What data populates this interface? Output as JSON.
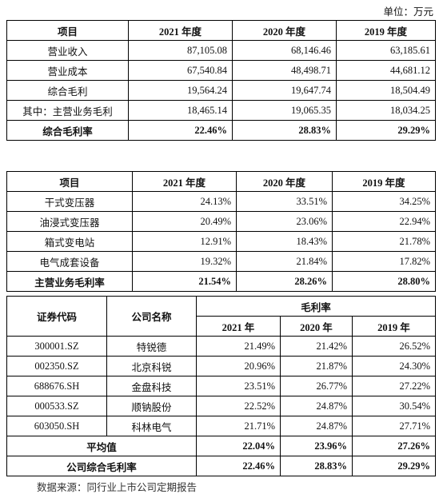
{
  "unit": "单位：万元",
  "table1": {
    "header": [
      "项目",
      "2021 年度",
      "2020 年度",
      "2019 年度"
    ],
    "rows": [
      [
        "营业收入",
        "87,105.08",
        "68,146.46",
        "63,185.61"
      ],
      [
        "营业成本",
        "67,540.84",
        "48,498.71",
        "44,681.12"
      ],
      [
        "综合毛利",
        "19,564.24",
        "19,647.74",
        "18,504.49"
      ],
      [
        "其中：主营业务毛利",
        "18,465.14",
        "19,065.35",
        "18,034.25"
      ],
      [
        "综合毛利率",
        "22.46%",
        "28.83%",
        "29.29%"
      ]
    ]
  },
  "table2": {
    "header": [
      "项目",
      "2021 年度",
      "2020 年度",
      "2019 年度"
    ],
    "rows": [
      [
        "干式变压器",
        "24.13%",
        "33.51%",
        "34.25%"
      ],
      [
        "油浸式变压器",
        "20.49%",
        "23.06%",
        "22.94%"
      ],
      [
        "箱式变电站",
        "12.91%",
        "18.43%",
        "21.78%"
      ],
      [
        "电气成套设备",
        "19.32%",
        "21.84%",
        "17.82%"
      ],
      [
        "主营业务毛利率",
        "21.54%",
        "28.26%",
        "28.80%"
      ]
    ]
  },
  "table3": {
    "header": {
      "code": "证券代码",
      "name": "公司名称",
      "group": "毛利率",
      "years": [
        "2021 年",
        "2020 年",
        "2019 年"
      ]
    },
    "rows": [
      [
        "300001.SZ",
        "特锐德",
        "21.49%",
        "21.42%",
        "26.52%"
      ],
      [
        "002350.SZ",
        "北京科锐",
        "20.96%",
        "21.87%",
        "24.30%"
      ],
      [
        "688676.SH",
        "金盘科技",
        "23.51%",
        "26.77%",
        "27.22%"
      ],
      [
        "000533.SZ",
        "顺钠股份",
        "22.52%",
        "24.87%",
        "30.54%"
      ],
      [
        "603050.SH",
        "科林电气",
        "21.71%",
        "24.87%",
        "27.71%"
      ]
    ],
    "summary": [
      [
        "平均值",
        "22.04%",
        "23.96%",
        "27.26%"
      ],
      [
        "公司综合毛利率",
        "22.46%",
        "28.83%",
        "29.29%"
      ]
    ]
  },
  "source": "数据来源：同行业上市公司定期报告"
}
